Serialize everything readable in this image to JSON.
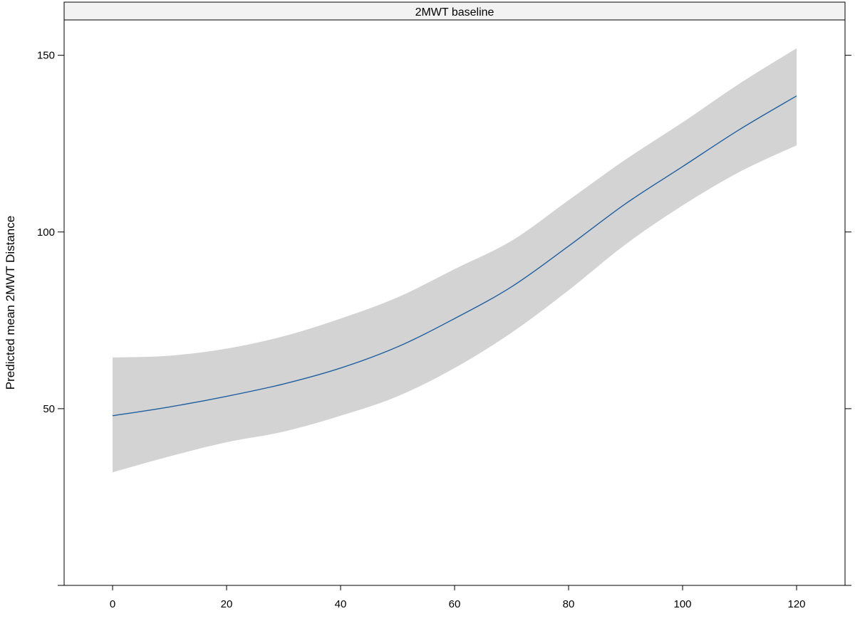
{
  "chart_data": {
    "type": "line",
    "title": "",
    "panel_label": "2MWT baseline",
    "xlabel": "",
    "ylabel": "Predicted mean 2MWT Distance",
    "xlim": [
      -8.5,
      128.5
    ],
    "ylim": [
      0,
      160
    ],
    "xticks": [
      0,
      20,
      40,
      60,
      80,
      100,
      120
    ],
    "xtick_labels": [
      "0",
      "20",
      "40",
      "60",
      "80",
      "100",
      "120"
    ],
    "yticks": [
      0,
      50,
      100,
      150
    ],
    "ytick_labels": [
      "",
      "50",
      "100",
      "150"
    ],
    "grid": false,
    "legend": "none",
    "series": [
      {
        "x": [
          0,
          10,
          20,
          30,
          40,
          50,
          60,
          70,
          80,
          90,
          100,
          110,
          120
        ],
        "y": [
          48,
          50.5,
          53.5,
          57,
          61.5,
          67.5,
          75.5,
          84.5,
          96,
          108,
          118.5,
          129,
          138.5
        ],
        "lower": [
          32,
          36.5,
          40.5,
          43.5,
          48,
          53.5,
          61.5,
          71.5,
          83.5,
          96.5,
          107.5,
          117,
          124.5
        ],
        "upper": [
          64.5,
          65,
          67,
          70.5,
          75.5,
          81.5,
          89.5,
          97.5,
          109,
          120.5,
          131,
          142,
          152
        ]
      }
    ],
    "colors": {
      "line": "#1f5fa0",
      "band": "#d3d3d3",
      "strip": "#f2f2f2",
      "axis": "#000000"
    }
  }
}
